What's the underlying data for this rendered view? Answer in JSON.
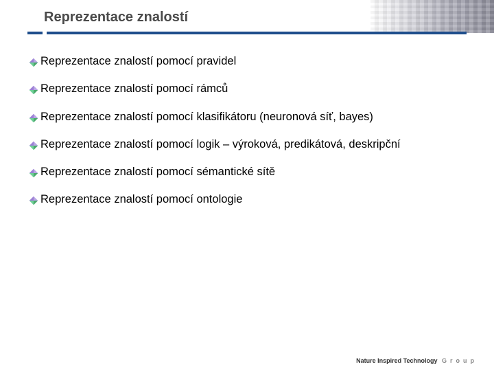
{
  "title": "Reprezentace znalostí",
  "bullets": [
    "Reprezentace znalostí pomocí pravidel",
    "Reprezentace znalostí pomocí rámců",
    "Reprezentace znalostí pomocí klasifikátoru (neuronová síť, bayes)",
    "Reprezentace znalostí pomocí logik – výroková, predikátová, deskripční",
    "Reprezentace znalostí pomocí sémantické sítě",
    "Reprezentace znalostí pomocí ontologie"
  ],
  "footer": {
    "main": "Nature Inspired Technology",
    "spaced": "Group"
  },
  "style": {
    "bullet_colors": {
      "tl": "#9b7fd4",
      "tr": "#b9a6e4",
      "bl": "#6fcf97",
      "br": "#4aa96c"
    },
    "accent_bar": "#1f4e8c",
    "title_color": "#4a4a4a",
    "text_color": "#000000",
    "background": "#ffffff"
  }
}
